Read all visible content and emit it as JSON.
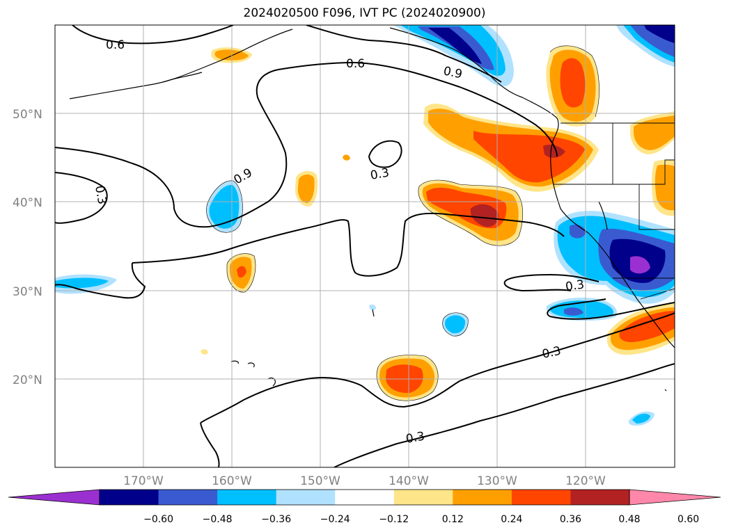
{
  "title": "2024020500 F096, IVT PC (2024020900)",
  "map": {
    "lat_labels": [
      "50°N",
      "40°N",
      "30°N",
      "20°N"
    ],
    "lon_labels": [
      "170°W",
      "160°W",
      "150°W",
      "140°W",
      "130°W",
      "120°W"
    ],
    "contour_labels": [
      "0.6",
      "0.6",
      "0.9",
      "0.9",
      "0.3",
      "0.3",
      "0.3",
      "0.3",
      "0.3"
    ]
  },
  "colorbar": {
    "colors": [
      "#9b30d0",
      "#00008b",
      "#3a5bd0",
      "#00bfff",
      "#b0e2ff",
      "#ffffff",
      "#ffe58a",
      "#ffa000",
      "#ff4500",
      "#b22222",
      "#ff88aa"
    ],
    "tick_labels": [
      "−0.60",
      "−0.48",
      "−0.36",
      "−0.24",
      "−0.12",
      "0.12",
      "0.24",
      "0.36",
      "0.48",
      "0.60"
    ]
  }
}
